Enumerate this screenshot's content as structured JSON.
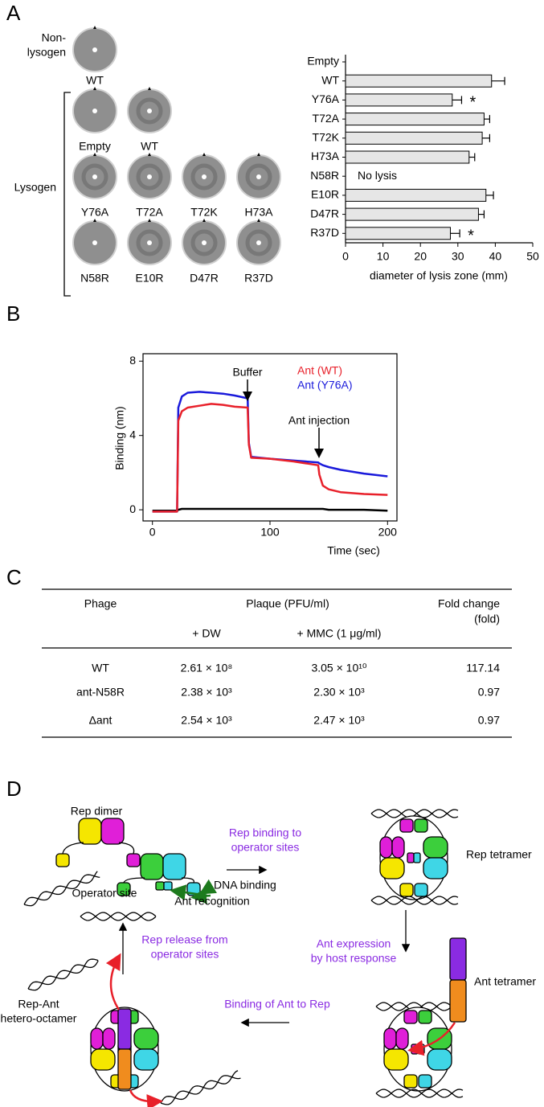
{
  "panel_labels": [
    "A",
    "B",
    "C",
    "D"
  ],
  "plaques": {
    "nonlysogen_label": [
      "Non-",
      "lysogen"
    ],
    "nonlysogen": [
      "WT"
    ],
    "lysogen_label": "Lysogen",
    "lysogen_rows": [
      [
        "Empty",
        "WT"
      ],
      [
        "Y76A",
        "T72A",
        "T72K",
        "H73A"
      ],
      [
        "N58R",
        "E10R",
        "D47R",
        "R37D"
      ]
    ]
  },
  "chart_data": [
    {
      "type": "bar",
      "orientation": "horizontal",
      "categories": [
        "Empty",
        "WT",
        "Y76A",
        "T72A",
        "T72K",
        "H73A",
        "N58R",
        "E10R",
        "D47R",
        "R37D"
      ],
      "values": [
        null,
        39,
        28.5,
        37,
        36.5,
        33,
        null,
        37.5,
        35.5,
        28
      ],
      "errors": [
        null,
        3.5,
        2.5,
        1.5,
        2,
        1.5,
        null,
        2,
        1.5,
        2.5
      ],
      "color": "#e6e6e6",
      "xlim": [
        0,
        50
      ],
      "xticks": [
        0,
        10,
        20,
        30,
        40,
        50
      ],
      "xlabel": "diameter of lysis zone (mm)",
      "annotations": [
        {
          "text": "*",
          "at": "Y76A"
        },
        {
          "text": "No lysis",
          "at": "N58R"
        },
        {
          "text": "*",
          "at": "R37D"
        }
      ]
    },
    {
      "type": "line",
      "x": [
        0,
        21,
        22,
        25,
        30,
        40,
        50,
        60,
        70,
        81,
        82,
        84,
        100,
        120,
        141,
        142,
        145,
        150,
        160,
        180,
        200
      ],
      "series": [
        {
          "name": "Ant (WT)",
          "color": "#e8202a",
          "values": [
            -0.1,
            -0.1,
            4.8,
            5.3,
            5.5,
            5.6,
            5.7,
            5.65,
            5.55,
            5.5,
            3.5,
            2.8,
            2.75,
            2.6,
            2.4,
            1.9,
            1.3,
            1.1,
            0.95,
            0.85,
            0.8
          ]
        },
        {
          "name": "Ant (Y76A)",
          "color": "#1a1adb",
          "values": [
            -0.1,
            -0.1,
            5.5,
            6.1,
            6.3,
            6.35,
            6.3,
            6.25,
            6.15,
            6.0,
            3.6,
            2.85,
            2.75,
            2.65,
            2.55,
            2.5,
            2.4,
            2.3,
            2.15,
            1.95,
            1.8
          ]
        },
        {
          "color": "#000000",
          "values": [
            -0.05,
            -0.05,
            0.0,
            0.05,
            0.05,
            0.05,
            0.05,
            0.05,
            0.05,
            0.05,
            0.05,
            0.05,
            0.05,
            0.05,
            0.05,
            0.05,
            0.05,
            0.0,
            0.0,
            0.0,
            -0.05
          ]
        }
      ],
      "xlim": [
        -8,
        208
      ],
      "ylim": [
        -0.6,
        8.4
      ],
      "xticks": [
        0,
        100,
        200
      ],
      "yticks": [
        0,
        4,
        8
      ],
      "xlabel": "Time (sec)",
      "ylabel": "Binding (nm)",
      "legend": "upper right",
      "annotations": [
        "Buffer",
        "Ant injection"
      ]
    }
  ],
  "table": {
    "header": {
      "phage": "Phage",
      "plaque": "Plaque (PFU/ml)",
      "fold": [
        "Fold change",
        "(fold)"
      ]
    },
    "subheader": [
      "+ DW",
      "+ MMC (1 μg/ml)"
    ],
    "rows": [
      [
        "WT",
        "2.61 × 10⁸",
        "3.05 × 10¹⁰",
        "117.14"
      ],
      [
        "ant-N58R",
        "2.38 × 10³",
        "2.30 × 10³",
        "0.97"
      ],
      [
        "Δant",
        "2.54 × 10³",
        "2.47 × 10³",
        "0.97"
      ]
    ]
  },
  "diagram": {
    "rep_dimer": "Rep dimer",
    "dna_binding": "DNA binding",
    "ant_recognition": "Ant recognition",
    "operator_site": "Operator site",
    "step1": [
      "Rep binding to",
      "operator sites"
    ],
    "rep_tetramer": "Rep tetramer",
    "step2": [
      "Ant expression",
      "by host response"
    ],
    "ant_tetramer": "Ant tetramer",
    "step3": "Binding of Ant to Rep",
    "octamer": [
      "Rep-Ant",
      "hetero-octamer"
    ],
    "step4": [
      "Rep release from",
      "operator sites"
    ]
  }
}
